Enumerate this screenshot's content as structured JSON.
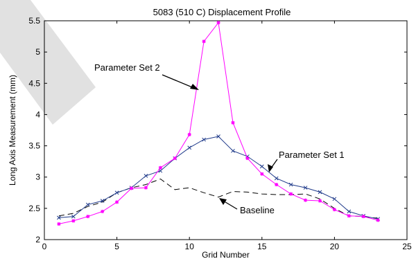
{
  "chart_data": {
    "type": "line",
    "title": "5083 (510 C) Displacement Profile",
    "xlabel": "Grid Number",
    "ylabel": "Long Axis Measurement (mm)",
    "xlim": [
      0,
      25
    ],
    "ylim": [
      2,
      5.5
    ],
    "xticks": [
      0,
      5,
      10,
      15,
      20,
      25
    ],
    "yticks": [
      2,
      2.5,
      3,
      3.5,
      4,
      4.5,
      5,
      5.5
    ],
    "grid": false,
    "legend": "none",
    "x": [
      1,
      2,
      3,
      4,
      5,
      6,
      7,
      8,
      9,
      10,
      11,
      12,
      13,
      14,
      15,
      16,
      17,
      18,
      19,
      20,
      21,
      22,
      23
    ],
    "series": [
      {
        "name": "Parameter Set 2",
        "color": "#ff00ff",
        "marker": "star",
        "dash": "solid",
        "values": [
          2.25,
          2.3,
          2.37,
          2.45,
          2.6,
          2.82,
          2.83,
          3.15,
          3.3,
          3.68,
          5.17,
          5.47,
          3.87,
          3.3,
          3.05,
          2.88,
          2.73,
          2.63,
          2.62,
          2.48,
          2.38,
          2.37,
          2.31
        ]
      },
      {
        "name": "Parameter Set 1",
        "color": "#1f3a8a",
        "marker": "x",
        "dash": "solid",
        "values": [
          2.35,
          2.37,
          2.56,
          2.62,
          2.75,
          2.83,
          3.02,
          3.1,
          3.3,
          3.47,
          3.6,
          3.65,
          3.42,
          3.33,
          3.17,
          2.98,
          2.88,
          2.83,
          2.76,
          2.65,
          2.45,
          2.38,
          2.33
        ]
      },
      {
        "name": "Baseline",
        "color": "#000000",
        "marker": "none",
        "dash": "dashed",
        "values": [
          2.38,
          2.42,
          2.53,
          2.6,
          2.75,
          2.83,
          2.88,
          2.97,
          2.8,
          2.83,
          2.75,
          2.68,
          2.77,
          2.76,
          2.73,
          2.72,
          2.72,
          2.73,
          2.65,
          2.5,
          2.38,
          2.37,
          2.34
        ]
      }
    ],
    "annotations": [
      {
        "text": "Parameter Set 2",
        "series": "Parameter Set 2"
      },
      {
        "text": "Parameter Set 1",
        "series": "Parameter Set 1"
      },
      {
        "text": "Baseline",
        "series": "Baseline"
      }
    ]
  }
}
